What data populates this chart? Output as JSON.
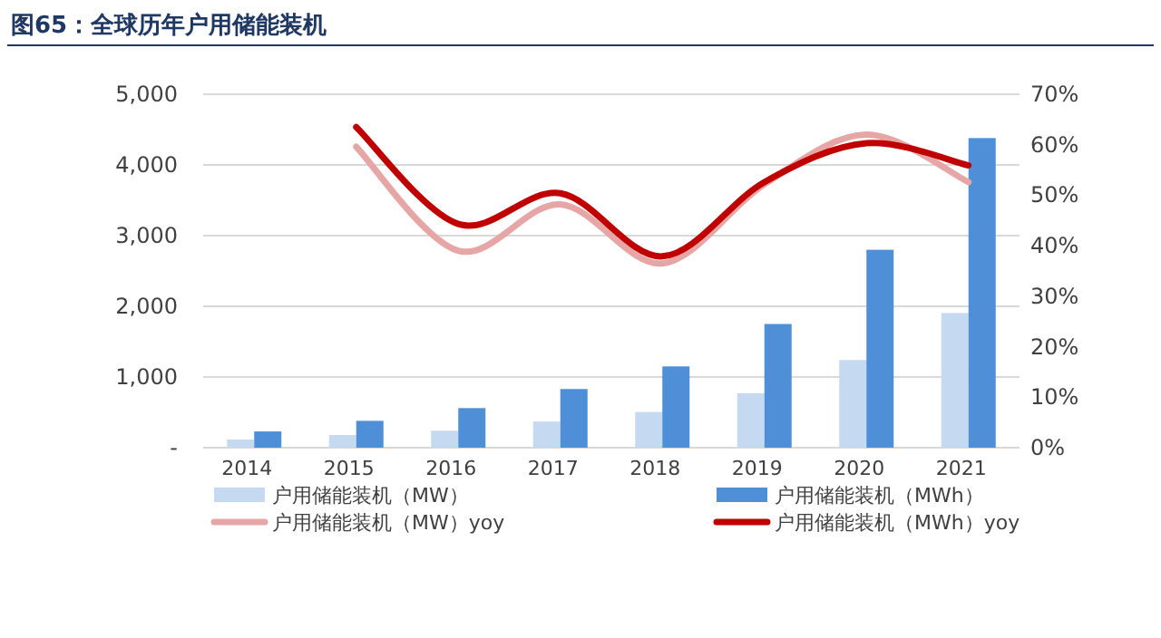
{
  "chart_data": {
    "type": "bar",
    "title": "图65：全球历年户用储能装机",
    "categories": [
      "2014",
      "2015",
      "2016",
      "2017",
      "2018",
      "2019",
      "2020",
      "2021"
    ],
    "series": [
      {
        "name": "户用储能装机（MW）",
        "color": "#c5d9f1",
        "values": [
          115,
          180,
          240,
          370,
          505,
          770,
          1240,
          1905
        ]
      },
      {
        "name": "户用储能装机（MWh）",
        "color": "#4f8fd8",
        "values": [
          230,
          380,
          560,
          830,
          1150,
          1750,
          2800,
          4380
        ]
      },
      {
        "name": "户用储能装机（MW）yoy",
        "type": "line",
        "axis": "y2",
        "color": "#e6a6a6",
        "values": [
          null,
          59.6,
          39,
          48.2,
          36.5,
          52.2,
          62,
          52.6
        ]
      },
      {
        "name": "户用储能装机（MWh）yoy",
        "type": "line",
        "axis": "y2",
        "color": "#c00000",
        "values": [
          null,
          63.5,
          44.3,
          50.4,
          37.9,
          52.6,
          60.3,
          55.9
        ]
      }
    ],
    "ylim": [
      0,
      5000
    ],
    "yticks": [
      {
        "value": 0,
        "label": "-"
      },
      {
        "value": 1000,
        "label": "1,000"
      },
      {
        "value": 2000,
        "label": "2,000"
      },
      {
        "value": 3000,
        "label": "3,000"
      },
      {
        "value": 4000,
        "label": "4,000"
      },
      {
        "value": 5000,
        "label": "5,000"
      }
    ],
    "y2lim": [
      0,
      70
    ],
    "y2ticks": [
      {
        "value": 0,
        "label": "0%"
      },
      {
        "value": 10,
        "label": "10%"
      },
      {
        "value": 20,
        "label": "20%"
      },
      {
        "value": 30,
        "label": "30%"
      },
      {
        "value": 40,
        "label": "40%"
      },
      {
        "value": 50,
        "label": "50%"
      },
      {
        "value": 60,
        "label": "60%"
      },
      {
        "value": 70,
        "label": "70%"
      }
    ],
    "grid": "y",
    "legend": "bottom",
    "marker": "none",
    "line_style": "solid"
  }
}
